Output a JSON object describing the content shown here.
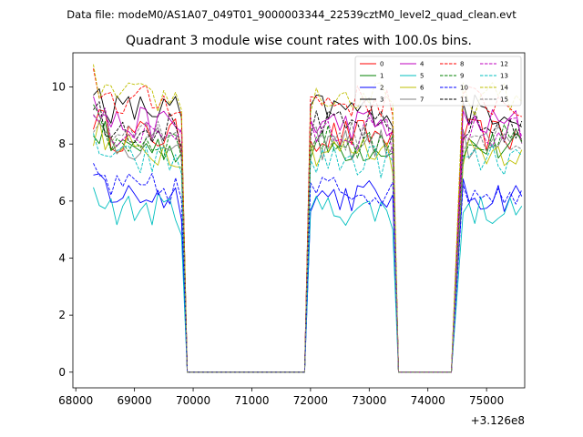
{
  "chart_data": {
    "type": "line",
    "suptitle": "Data file: modeM0/AS1A07_049T01_9000003344_22539cztM0_level2_quad_clean.evt",
    "title": "Quadrant 3 module wise count rates with 100.0s bins.",
    "xlabel": "",
    "ylabel": "",
    "x_offset_label": "+3.126e8",
    "xlim": [
      67950,
      75650
    ],
    "ylim": [
      -0.55,
      11.2
    ],
    "x_ticks": [
      68000,
      69000,
      70000,
      71000,
      72000,
      73000,
      74000,
      75000
    ],
    "y_ticks": [
      0,
      2,
      4,
      6,
      8,
      10
    ],
    "legend_position": "upper-right",
    "segments": [
      {
        "start": 68300,
        "end": 69800
      },
      {
        "start": 72000,
        "end": 73400
      },
      {
        "start": 74600,
        "end": 75600
      }
    ],
    "gaps": [
      {
        "drop_start": 69800,
        "zero_start": 69900,
        "zero_end": 71900,
        "rise_end": 72000
      },
      {
        "drop_start": 73400,
        "zero_start": 73500,
        "zero_end": 74400,
        "rise_end": 74600
      }
    ],
    "series": [
      {
        "name": "0",
        "color": "#ff0000",
        "dash": "solid",
        "base": 8.3
      },
      {
        "name": "1",
        "color": "#008000",
        "dash": "solid",
        "base": 7.9
      },
      {
        "name": "2",
        "color": "#0000ff",
        "dash": "solid",
        "base": 6.2
      },
      {
        "name": "3",
        "color": "#000000",
        "dash": "solid",
        "base": 9.2
      },
      {
        "name": "4",
        "color": "#bf00bf",
        "dash": "solid",
        "base": 8.7
      },
      {
        "name": "5",
        "color": "#00bfbf",
        "dash": "solid",
        "base": 5.7
      },
      {
        "name": "6",
        "color": "#bfbf00",
        "dash": "solid",
        "base": 7.8
      },
      {
        "name": "7",
        "color": "#808080",
        "dash": "solid",
        "base": 8.0
      },
      {
        "name": "8",
        "color": "#ff0000",
        "dash": "dashed",
        "base": 9.5
      },
      {
        "name": "9",
        "color": "#008000",
        "dash": "dashed",
        "base": 8.1
      },
      {
        "name": "10",
        "color": "#0000ff",
        "dash": "dashed",
        "base": 6.4
      },
      {
        "name": "11",
        "color": "#000000",
        "dash": "dashed",
        "base": 8.6
      },
      {
        "name": "12",
        "color": "#bf00bf",
        "dash": "dashed",
        "base": 8.4
      },
      {
        "name": "13",
        "color": "#00bfbf",
        "dash": "dashed",
        "base": 7.4
      },
      {
        "name": "14",
        "color": "#bfbf00",
        "dash": "dashed",
        "base": 9.6
      },
      {
        "name": "15",
        "color": "#808080",
        "dash": "dashed",
        "base": 8.3
      }
    ]
  }
}
